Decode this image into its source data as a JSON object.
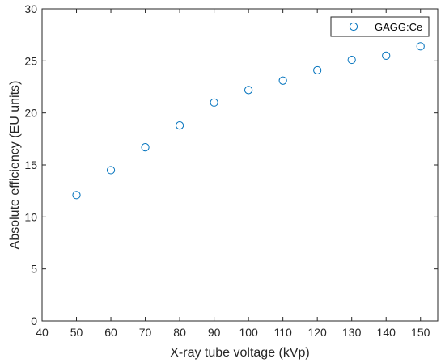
{
  "chart_data": {
    "type": "scatter",
    "title": "",
    "xlabel": "X-ray tube voltage (kVp)",
    "ylabel": "Absolute efficiency (EU units)",
    "xlim": [
      40,
      155
    ],
    "ylim": [
      0,
      30
    ],
    "xticks": [
      40,
      50,
      60,
      70,
      80,
      90,
      100,
      110,
      120,
      130,
      140,
      150
    ],
    "yticks": [
      0,
      5,
      10,
      15,
      20,
      25,
      30
    ],
    "grid": false,
    "legend_position": "top-right",
    "marker": "open-circle",
    "series": [
      {
        "name": "GAGG:Ce",
        "color": "#0072BD",
        "x": [
          50,
          60,
          70,
          80,
          90,
          100,
          110,
          120,
          130,
          140,
          150
        ],
        "y": [
          12.1,
          14.5,
          16.7,
          18.8,
          21.0,
          22.2,
          23.1,
          24.1,
          25.1,
          25.5,
          26.4
        ]
      }
    ]
  }
}
